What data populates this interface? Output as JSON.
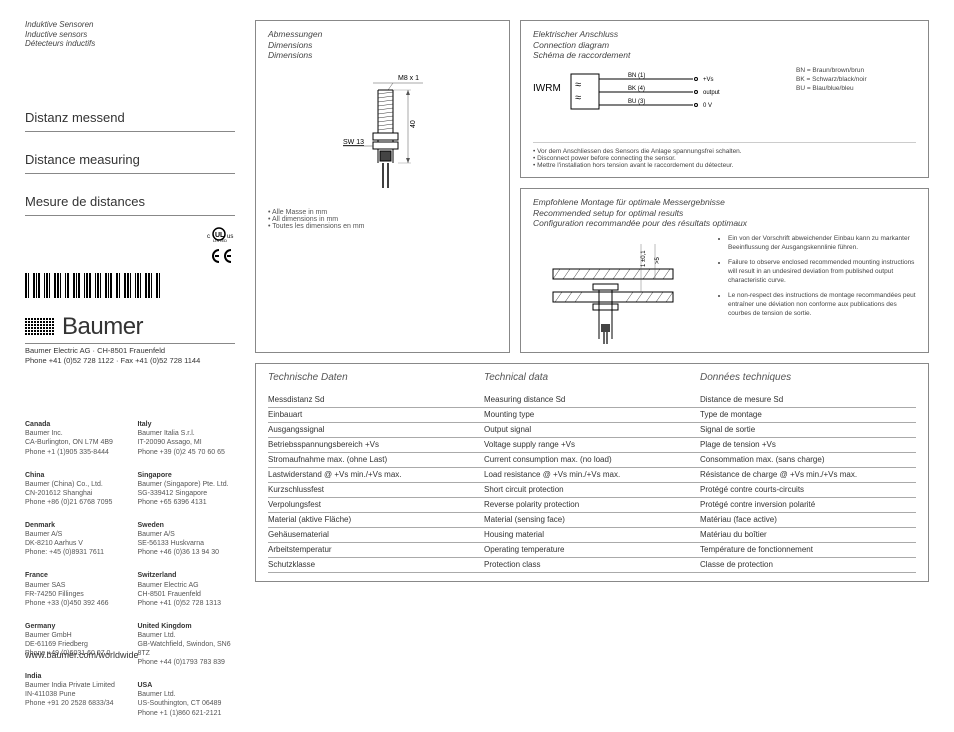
{
  "header": {
    "de": "Induktive Sensoren",
    "en": "Inductive sensors",
    "fr": "Détecteurs inductifs"
  },
  "titles": {
    "de": "Distanz messend",
    "en": "Distance measuring",
    "fr": "Mesure de distances"
  },
  "brand": {
    "name": "Baumer"
  },
  "company": {
    "line1": "Baumer Electric AG · CH-8501 Frauenfeld",
    "line2": "Phone +41 (0)52 728 1122 · Fax +41 (0)52 728 1144"
  },
  "offices_left": [
    {
      "country": "Canada",
      "l1": "Baumer Inc.",
      "l2": "CA-Burlington, ON L7M 4B9",
      "l3": "Phone +1 (1)905 335-8444"
    },
    {
      "country": "China",
      "l1": "Baumer (China) Co., Ltd.",
      "l2": "CN-201612 Shanghai",
      "l3": "Phone +86 (0)21 6768 7095"
    },
    {
      "country": "Denmark",
      "l1": "Baumer A/S",
      "l2": "DK-8210 Aarhus V",
      "l3": "Phone: +45 (0)8931 7611"
    },
    {
      "country": "France",
      "l1": "Baumer SAS",
      "l2": "FR-74250 Fillinges",
      "l3": "Phone +33 (0)450 392 466"
    },
    {
      "country": "Germany",
      "l1": "Baumer GmbH",
      "l2": "DE-61169 Friedberg",
      "l3": "Phone +49 (0)6031 60 07 0"
    },
    {
      "country": "India",
      "l1": "Baumer India Private Limited",
      "l2": "IN-411038 Pune",
      "l3": "Phone +91 20 2528 6833/34"
    }
  ],
  "offices_right": [
    {
      "country": "Italy",
      "l1": "Baumer Italia S.r.l.",
      "l2": "IT-20090 Assago, MI",
      "l3": "Phone +39 (0)2 45 70 60 65"
    },
    {
      "country": "Singapore",
      "l1": "Baumer (Singapore) Pte. Ltd.",
      "l2": "SG-339412 Singapore",
      "l3": "Phone +65 6396 4131"
    },
    {
      "country": "Sweden",
      "l1": "Baumer A/S",
      "l2": "SE-56133 Huskvarna",
      "l3": "Phone +46 (0)36 13 94 30"
    },
    {
      "country": "Switzerland",
      "l1": "Baumer Electric AG",
      "l2": "CH-8501 Frauenfeld",
      "l3": "Phone +41 (0)52 728 1313"
    },
    {
      "country": "United Kingdom",
      "l1": "Baumer Ltd.",
      "l2": "GB-Watchfield, Swindon, SN6 8TZ",
      "l3": "Phone +44 (0)1793 783 839"
    },
    {
      "country": "USA",
      "l1": "Baumer Ltd.",
      "l2": "US-Southington, CT 06489",
      "l3": "Phone +1 (1)860 621-2121"
    }
  ],
  "url": "www.baumer.com/worldwide",
  "dimensions_panel": {
    "head_de": "Abmessungen",
    "head_en": "Dimensions",
    "head_fr": "Dimensions",
    "labels": {
      "thread": "M8 x 1",
      "length": "40",
      "wrench": "SW 13"
    },
    "notes_de": "• Alle Masse in mm",
    "notes_en": "• All dimensions in mm",
    "notes_fr": "• Toutes les dimensions en mm"
  },
  "connection_panel": {
    "head_de": "Elektrischer Anschluss",
    "head_en": "Connection diagram",
    "head_fr": "Schéma de raccordement",
    "model": "IWRM",
    "wires": {
      "bn": "BN (1)",
      "bn_label": "+Vs",
      "bk": "BK (4)",
      "bk_label": "output",
      "bu": "BU (3)",
      "bu_label": "0 V"
    },
    "legend": {
      "bn": "BN = Braun/brown/brun",
      "bk": "BK = Schwarz/black/noir",
      "bu": "BU = Blau/blue/bleu"
    },
    "notes_de": "• Vor dem Anschliessen des Sensors die Anlage spannungsfrei schalten.",
    "notes_en": "• Disconnect power before connecting the sensor.",
    "notes_fr": "• Mettre l'installation hors tension avant le raccordement du détecteur."
  },
  "mounting_panel": {
    "head_de": "Empfohlene Montage für optimale Messergebnisse",
    "head_en": "Recommended setup for optimal results",
    "head_fr": "Configuration recommandée pour des résultats optimaux",
    "labels": {
      "a": "1 ±0,1",
      "b": ">5"
    },
    "note_de": "Ein von der Vorschrift abweichender Einbau kann zu markanter Beeinflussung der Ausgangskennlinie führen.",
    "note_en": "Failure to observe enclosed recommended mounting instructions will result in an undesired deviation from published output characteristic curve.",
    "note_fr": "Le non-respect  des instructions de montage recommandées peut entraîner une déviation non conforme aux publications des courbes de tension de sortie."
  },
  "tech_panel": {
    "h_de": "Technische Daten",
    "h_en": "Technical data",
    "h_fr": "Données techniques",
    "rows": [
      {
        "de": "Messdistanz Sd",
        "en": "Measuring distance Sd",
        "fr": "Distance de mesure Sd"
      },
      {
        "de": "Einbauart",
        "en": "Mounting type",
        "fr": "Type de montage"
      },
      {
        "de": "Ausgangssignal",
        "en": "Output signal",
        "fr": "Signal de sortie"
      },
      {
        "de": "Betriebsspannungsbereich +Vs",
        "en": "Voltage supply range +Vs",
        "fr": "Plage de tension +Vs"
      },
      {
        "de": "Stromaufnahme max. (ohne Last)",
        "en": "Current consumption max. (no load)",
        "fr": "Consommation max. (sans charge)"
      },
      {
        "de": "Lastwiderstand @ +Vs min./+Vs max.",
        "en": "Load resistance @ +Vs min./+Vs max.",
        "fr": "Résistance de charge @ +Vs min./+Vs max."
      },
      {
        "de": "Kurzschlussfest",
        "en": "Short circuit protection",
        "fr": "Protégé contre courts-circuits"
      },
      {
        "de": "Verpolungsfest",
        "en": "Reverse polarity protection",
        "fr": "Protégé contre inversion polarité"
      },
      {
        "de": "Material (aktive Fläche)",
        "en": "Material (sensing face)",
        "fr": "Matériau (face active)"
      },
      {
        "de": "Gehäusematerial",
        "en": "Housing material",
        "fr": "Matériau du boîtier"
      },
      {
        "de": "Arbeitstemperatur",
        "en": "Operating temperature",
        "fr": "Température de fonctionnement"
      },
      {
        "de": "Schutzklasse",
        "en": "Protection class",
        "fr": "Classe de protection"
      }
    ]
  },
  "marks": {
    "ce": "CE"
  }
}
